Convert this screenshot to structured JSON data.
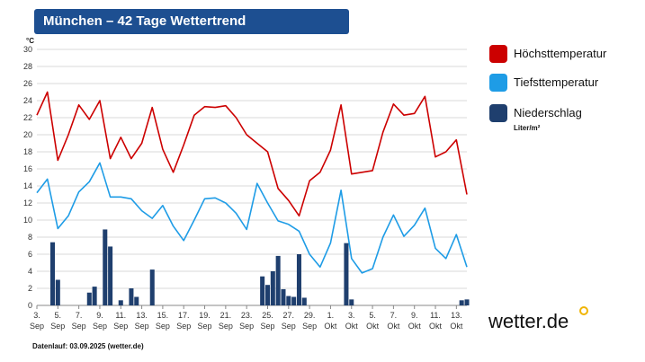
{
  "title": "München – 42 Tage Wettertrend",
  "footer": "Datenlauf: 03.09.2025 (wetter.de)",
  "logo": "wetter.de",
  "chart_data": {
    "type": "line",
    "y_unit": "°C",
    "ylim": [
      0,
      30
    ],
    "yticks": [
      0,
      2,
      4,
      6,
      8,
      10,
      12,
      14,
      16,
      18,
      20,
      22,
      24,
      26,
      28,
      30
    ],
    "grid": true,
    "legend_position": "right",
    "x_labels": [
      {
        "day": "3.",
        "month": "Sep",
        "index": 0
      },
      {
        "day": "5.",
        "month": "Sep",
        "index": 2
      },
      {
        "day": "7.",
        "month": "Sep",
        "index": 4
      },
      {
        "day": "9.",
        "month": "Sep",
        "index": 6
      },
      {
        "day": "11.",
        "month": "Sep",
        "index": 8
      },
      {
        "day": "13.",
        "month": "Sep",
        "index": 10
      },
      {
        "day": "15.",
        "month": "Sep",
        "index": 12
      },
      {
        "day": "17.",
        "month": "Sep",
        "index": 14
      },
      {
        "day": "19.",
        "month": "Sep",
        "index": 16
      },
      {
        "day": "21.",
        "month": "Sep",
        "index": 18
      },
      {
        "day": "23.",
        "month": "Sep",
        "index": 20
      },
      {
        "day": "25.",
        "month": "Sep",
        "index": 22
      },
      {
        "day": "27.",
        "month": "Sep",
        "index": 24
      },
      {
        "day": "29.",
        "month": "Sep",
        "index": 26
      },
      {
        "day": "1.",
        "month": "Okt",
        "index": 28
      },
      {
        "day": "3.",
        "month": "Okt",
        "index": 30
      },
      {
        "day": "5.",
        "month": "Okt",
        "index": 32
      },
      {
        "day": "7.",
        "month": "Okt",
        "index": 34
      },
      {
        "day": "9.",
        "month": "Okt",
        "index": 36
      },
      {
        "day": "11.",
        "month": "Okt",
        "index": 38
      },
      {
        "day": "13.",
        "month": "Okt",
        "index": 40
      }
    ],
    "series": [
      {
        "name": "Höchsttemperatur",
        "color": "#cc0000",
        "kind": "line",
        "values": [
          22.3,
          25.0,
          17.0,
          20.0,
          23.5,
          21.8,
          24.0,
          17.2,
          19.7,
          17.2,
          19.0,
          23.2,
          18.3,
          15.6,
          18.8,
          22.3,
          23.3,
          23.2,
          23.4,
          22.0,
          20.0,
          19.0,
          18.0,
          13.7,
          12.3,
          10.5,
          14.6,
          15.6,
          18.2,
          23.5,
          15.4,
          15.6,
          15.8,
          20.3,
          23.6,
          22.3,
          22.5,
          24.5,
          17.4,
          18.0,
          19.4,
          13.0
        ]
      },
      {
        "name": "Tiefsttemperatur",
        "color": "#1e9ce6",
        "kind": "line",
        "values": [
          13.2,
          14.8,
          9.0,
          10.5,
          13.3,
          14.5,
          16.7,
          12.7,
          12.7,
          12.5,
          11.1,
          10.2,
          11.7,
          9.3,
          7.6,
          10.0,
          12.5,
          12.6,
          12.0,
          10.8,
          8.9,
          14.3,
          12.0,
          9.9,
          9.5,
          8.7,
          6.0,
          4.5,
          7.3,
          13.5,
          5.5,
          3.8,
          4.3,
          8.0,
          10.6,
          8.1,
          9.4,
          11.4,
          6.7,
          5.5,
          8.3,
          4.5
        ]
      },
      {
        "name": "Niederschlag",
        "sub": "Liter/m²",
        "color": "#1f3f6e",
        "kind": "bar",
        "bars": [
          {
            "x": 1.5,
            "v": 7.4
          },
          {
            "x": 2.0,
            "v": 3.0
          },
          {
            "x": 5.0,
            "v": 1.5
          },
          {
            "x": 5.5,
            "v": 2.2
          },
          {
            "x": 6.5,
            "v": 8.9
          },
          {
            "x": 7.0,
            "v": 6.9
          },
          {
            "x": 8.0,
            "v": 0.6
          },
          {
            "x": 9.0,
            "v": 2.0
          },
          {
            "x": 9.5,
            "v": 1.0
          },
          {
            "x": 11.0,
            "v": 4.2
          },
          {
            "x": 21.5,
            "v": 3.4
          },
          {
            "x": 22.0,
            "v": 2.4
          },
          {
            "x": 22.5,
            "v": 4.0
          },
          {
            "x": 23.0,
            "v": 5.8
          },
          {
            "x": 23.5,
            "v": 1.9
          },
          {
            "x": 24.0,
            "v": 1.1
          },
          {
            "x": 24.5,
            "v": 1.0
          },
          {
            "x": 25.0,
            "v": 6.0
          },
          {
            "x": 25.5,
            "v": 0.9
          },
          {
            "x": 29.5,
            "v": 7.3
          },
          {
            "x": 30.0,
            "v": 0.7
          },
          {
            "x": 40.5,
            "v": 0.6
          },
          {
            "x": 41.0,
            "v": 0.7
          }
        ]
      }
    ]
  }
}
